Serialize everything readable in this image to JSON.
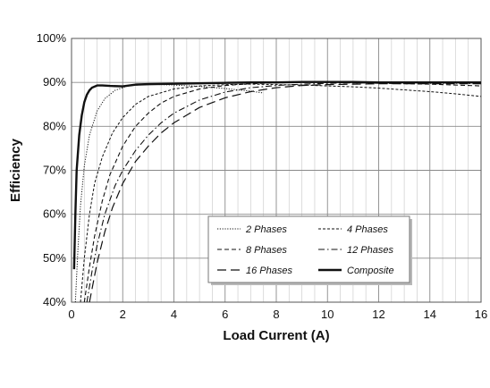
{
  "chart_data": {
    "type": "line",
    "xlabel": "Load Current (A)",
    "ylabel": "Efficiency",
    "xlim": [
      0,
      16
    ],
    "ylim": [
      40,
      100
    ],
    "x_ticks": [
      0,
      2,
      4,
      6,
      8,
      10,
      12,
      14,
      16
    ],
    "y_ticks": [
      40,
      50,
      60,
      70,
      80,
      90,
      100
    ],
    "y_tick_labels": [
      "40%",
      "50%",
      "60%",
      "70%",
      "80%",
      "90%",
      "100%"
    ],
    "grid": true,
    "legend_position": "bottom-right",
    "series": [
      {
        "name": "2 Phases",
        "style": "dotted",
        "x": [
          0.15,
          0.25,
          0.35,
          0.5,
          0.7,
          1.0,
          1.3,
          1.7,
          2.2,
          3.0,
          4.0,
          5.0,
          6.0,
          7.0,
          7.5
        ],
        "y": [
          40,
          52,
          62,
          71,
          78,
          83.5,
          86.3,
          88.2,
          89.2,
          89.6,
          89.4,
          89.1,
          88.6,
          88.0,
          87.6
        ]
      },
      {
        "name": "4 Phases",
        "style": "short-dash",
        "x": [
          0.35,
          0.5,
          0.7,
          0.9,
          1.2,
          1.6,
          2.0,
          2.5,
          3.0,
          4.0,
          5.0,
          6.0,
          7.0,
          8.0,
          9.0,
          10.0,
          11.0,
          12.0,
          13.0,
          14.0,
          15.0,
          16.0
        ],
        "y": [
          40,
          50,
          60,
          67,
          73,
          78.5,
          82,
          85,
          86.8,
          88.5,
          89.2,
          89.5,
          89.6,
          89.5,
          89.4,
          89.2,
          89.0,
          88.7,
          88.3,
          87.9,
          87.4,
          86.8
        ]
      },
      {
        "name": "8 Phases",
        "style": "dash",
        "x": [
          0.5,
          0.7,
          0.9,
          1.2,
          1.5,
          2.0,
          2.5,
          3.0,
          3.5,
          4.0,
          5.0,
          6.0,
          7.0,
          8.0,
          9.0,
          10.0,
          11.0,
          12.0,
          13.0,
          14.0,
          15.0,
          16.0
        ],
        "y": [
          40,
          48,
          55,
          63,
          69,
          75.5,
          80,
          83,
          85.3,
          86.8,
          88.5,
          89.3,
          89.7,
          89.9,
          90.0,
          90.0,
          89.9,
          89.8,
          89.7,
          89.6,
          89.4,
          89.2
        ]
      },
      {
        "name": "12 Phases",
        "style": "dash-dot",
        "x": [
          0.6,
          0.8,
          1.0,
          1.3,
          1.7,
          2.0,
          2.5,
          3.0,
          3.5,
          4.0,
          5.0,
          6.0,
          7.0,
          8.0,
          9.0,
          10.0,
          11.0,
          12.0,
          13.0,
          14.0,
          15.0,
          16.0
        ],
        "y": [
          40,
          47,
          53,
          60,
          66.5,
          70,
          74.5,
          78,
          80.8,
          83,
          86,
          87.8,
          88.8,
          89.3,
          89.6,
          89.8,
          89.9,
          89.9,
          89.9,
          89.8,
          89.8,
          89.7
        ]
      },
      {
        "name": "16 Phases",
        "style": "long-dash",
        "x": [
          0.7,
          1.0,
          1.3,
          1.6,
          2.0,
          2.5,
          3.0,
          3.5,
          4.0,
          5.0,
          6.0,
          7.0,
          8.0,
          9.0,
          10.0,
          11.0,
          12.0,
          13.0,
          14.0,
          15.0,
          16.0
        ],
        "y": [
          40,
          49,
          56,
          61.5,
          67,
          72,
          75.5,
          78.5,
          80.8,
          84.3,
          86.5,
          87.9,
          88.8,
          89.3,
          89.5,
          89.6,
          89.7,
          89.7,
          89.7,
          89.7,
          89.7
        ]
      },
      {
        "name": "Composite",
        "style": "solid-bold",
        "x": [
          0.1,
          0.15,
          0.2,
          0.3,
          0.4,
          0.5,
          0.6,
          0.7,
          0.8,
          1.0,
          1.2,
          1.5,
          2.0,
          2.5,
          3.0,
          4.0,
          5.0,
          6.0,
          7.0,
          8.0,
          9.0,
          10.0,
          11.0,
          12.0,
          13.0,
          14.0,
          15.0,
          16.0
        ],
        "y": [
          47.5,
          60,
          70,
          78,
          82.5,
          85.5,
          87.2,
          88.2,
          88.8,
          89.3,
          89.3,
          89.2,
          89.1,
          89.5,
          89.6,
          89.7,
          89.8,
          89.9,
          90.0,
          90.0,
          90.1,
          90.1,
          90.1,
          90.0,
          90.0,
          90.0,
          90.0,
          90.0
        ]
      }
    ]
  }
}
